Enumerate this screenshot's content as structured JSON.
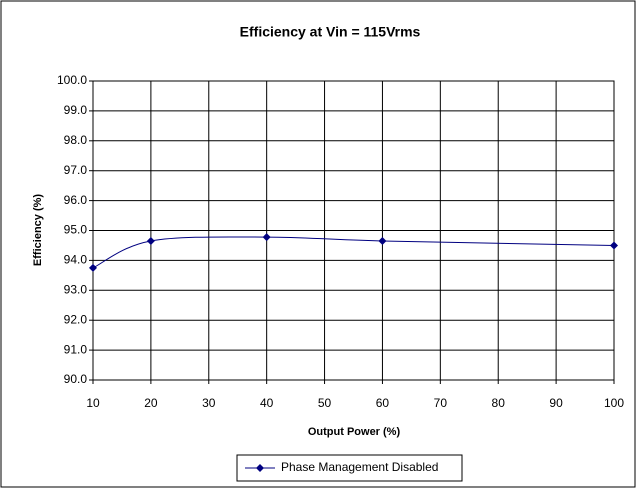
{
  "chart_data": {
    "type": "line",
    "title": "Efficiency at Vin = 115Vrms",
    "x_label": "Output Power (%)",
    "y_label": "Efficiency (%)",
    "x": [
      10,
      20,
      40,
      60,
      100
    ],
    "series": [
      {
        "name": "Phase Management Disabled",
        "color": "#000080",
        "values": [
          93.75,
          94.65,
          94.78,
          94.65,
          94.5
        ]
      }
    ],
    "xlim": [
      10,
      100
    ],
    "xticks": [
      10,
      20,
      30,
      40,
      50,
      60,
      70,
      80,
      90,
      100
    ],
    "ylim": [
      90,
      100
    ],
    "yticks": [
      {
        "value": 90,
        "label": "90.0"
      },
      {
        "value": 91,
        "label": "91.0"
      },
      {
        "value": 92,
        "label": "92.0"
      },
      {
        "value": 93,
        "label": "93.0"
      },
      {
        "value": 94,
        "label": "94.0"
      },
      {
        "value": 95,
        "label": "95.0"
      },
      {
        "value": 96,
        "label": "96.0"
      },
      {
        "value": 97,
        "label": "97.0"
      },
      {
        "value": 98,
        "label": "98.0"
      },
      {
        "value": 99,
        "label": "99.0"
      },
      {
        "value": 100,
        "label": "100.0"
      }
    ],
    "grid": true,
    "legend": "bottom"
  }
}
